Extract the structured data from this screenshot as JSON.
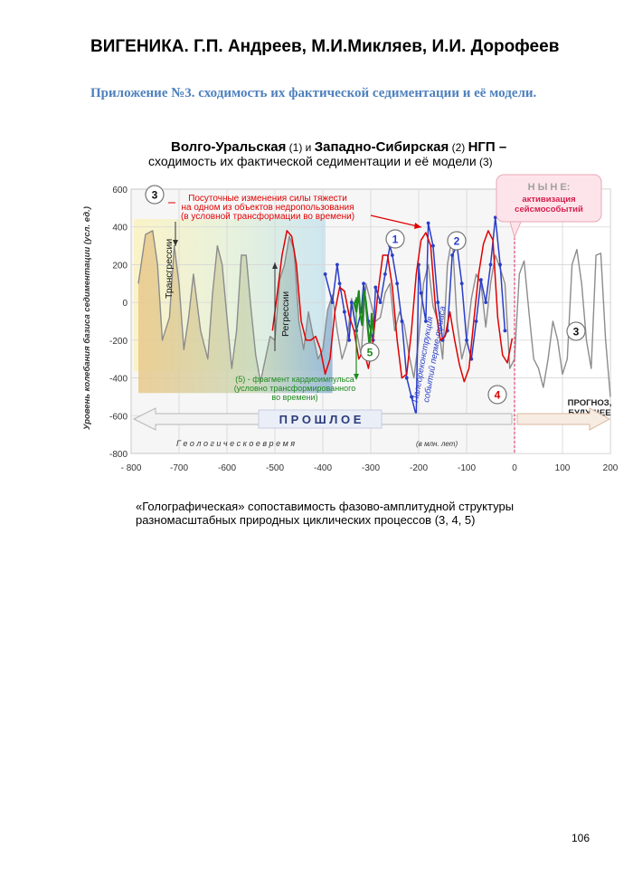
{
  "document": {
    "title": "ВИГЕНИКА. Г.П. Андреев, М.И.Микляев, И.И. Дорофеев",
    "appendix_title": "Приложение №3. сходимость их фактической седиментации и её модели.",
    "page_number": "106"
  },
  "figure": {
    "heading_part1": "Волго-Уральская",
    "heading_num1": " (1) и ",
    "heading_part2": "Западно-Сибирская",
    "heading_num2": " (2) ",
    "heading_part3": "НГП",
    "heading_dash": "  –",
    "heading_line2": "сходимость  их фактической  седиментации  и  её  модели",
    "heading_line2_num": " (3)",
    "gravity_note_l1": "Посуточные изменения силы тяжести",
    "gravity_note_l2": "на одном из объектов недропользования",
    "gravity_note_l3": "(в условной трансформации во времени)",
    "now_label": "Н Ы Н Е:",
    "now_sub1": "активизация",
    "now_sub2": "сейсмособытий",
    "transgression_label": "Трансгрессии",
    "regression_label": "Регрессии",
    "paleo_l1": "Палеореконструкция",
    "paleo_l2": "событий перме-триаса",
    "cardio_l1": "(5) - фрагмент кардиоимпульса",
    "cardio_l2": "(условно трансформированного",
    "cardio_l3": "во времени)",
    "forecast_l1": "ПРОГНОЗ,",
    "forecast_l2": "БУДУЩЕЕ",
    "past_label": "П Р О Ш Л О Е",
    "geotime_label": "Г е о л о г и ч е с к о е    в р е м я",
    "geotime_units": "(в млн. лет)",
    "markers": [
      "3",
      "1",
      "2",
      "3",
      "5",
      "4"
    ],
    "caption_l1": "«Голографическая» сопоставимость фазово-амплитудной структуры",
    "caption_l2": "разномасштабных природных циклических процессов (3, 4, 5)"
  },
  "chart_data": {
    "type": "line",
    "ylabel": "Уровень колебания базиса седиментации (усл. ед.)",
    "xlim": [
      -800,
      200
    ],
    "ylim": [
      -800,
      600
    ],
    "x_ticks": [
      "- 800",
      "-700",
      "-600",
      "-500",
      "-400",
      "-300",
      "-200",
      "-100",
      "0",
      "100",
      "200"
    ],
    "y_ticks": [
      "600",
      "400",
      "200",
      "0",
      "-200",
      "-400",
      "-600",
      "-800"
    ],
    "grid": true,
    "series": [
      {
        "name": "3",
        "color": "#8c8c8c",
        "x": [
          -785,
          -770,
          -755,
          -745,
          -735,
          -720,
          -710,
          -700,
          -690,
          -680,
          -670,
          -655,
          -640,
          -630,
          -620,
          -610,
          -600,
          -590,
          -580,
          -570,
          -560,
          -550,
          -540,
          -530,
          -520,
          -510,
          -500,
          -490,
          -480,
          -470,
          -460,
          -450,
          -440,
          -430,
          -420,
          -410,
          -400,
          -390,
          -380,
          -370,
          -360,
          -350,
          -340,
          -330,
          -320,
          -310,
          -300,
          -290,
          -280,
          -270,
          -260,
          -250,
          -240,
          -230,
          -220,
          -210,
          -200,
          -190,
          -180,
          -170,
          -160,
          -150,
          -140,
          -130,
          -120,
          -110,
          -100,
          -90,
          -80,
          -70,
          -60,
          -50,
          -40,
          -30,
          -20,
          -10,
          0,
          10,
          20,
          30,
          40,
          50,
          60,
          70,
          80,
          90,
          100,
          110,
          120,
          130,
          140,
          150,
          160,
          170,
          180,
          190,
          200
        ],
        "y": [
          100,
          360,
          380,
          200,
          -200,
          -80,
          300,
          100,
          -250,
          -80,
          150,
          -150,
          -300,
          50,
          300,
          200,
          -80,
          -350,
          -150,
          250,
          250,
          -30,
          -280,
          -420,
          -300,
          -180,
          -200,
          120,
          200,
          350,
          280,
          -100,
          -250,
          -50,
          -180,
          -300,
          -250,
          -40,
          40,
          -150,
          -300,
          -220,
          20,
          -150,
          -280,
          100,
          0,
          -100,
          -80,
          50,
          100,
          -150,
          -50,
          -120,
          -280,
          -400,
          -200,
          100,
          200,
          -20,
          -100,
          -300,
          200,
          350,
          -100,
          -300,
          -200,
          20,
          150,
          100,
          -130,
          100,
          250,
          180,
          100,
          -350,
          -300,
          150,
          220,
          -50,
          -300,
          -350,
          -450,
          -300,
          -100,
          -200,
          -380,
          -300,
          200,
          280,
          100,
          -200,
          -350,
          250,
          260,
          -200,
          -500
        ]
      },
      {
        "name": "1, 2",
        "color": "#2a3ec8",
        "x": [
          -395,
          -380,
          -370,
          -365,
          -355,
          -345,
          -340,
          -330,
          -320,
          -315,
          -305,
          -295,
          -290,
          -280,
          -270,
          -260,
          -255,
          -245,
          -235,
          -225,
          -215,
          -205,
          -200,
          -195,
          -185,
          -180,
          -170,
          -160,
          -150,
          -140,
          -130,
          -120,
          -110,
          -100,
          -90,
          -80,
          -70,
          -60,
          -50,
          -40,
          -30,
          -20
        ],
        "y": [
          150,
          0,
          200,
          100,
          -50,
          -200,
          0,
          -150,
          -50,
          100,
          -100,
          -200,
          80,
          0,
          150,
          300,
          250,
          100,
          -100,
          -400,
          -500,
          -600,
          200,
          50,
          -100,
          420,
          300,
          0,
          -200,
          -150,
          250,
          300,
          100,
          -200,
          -300,
          -100,
          120,
          0,
          200,
          450,
          200,
          -150
        ]
      },
      {
        "name": "4",
        "color": "#e00000",
        "x": [
          -505,
          -495,
          -485,
          -475,
          -465,
          -455,
          -445,
          -435,
          -425,
          -415,
          -405,
          -395,
          -385,
          -375,
          -365,
          -355,
          -345,
          -335,
          -325,
          -315,
          -305,
          -295,
          -285,
          -275,
          -265,
          -255,
          -245,
          -235,
          -225,
          -215,
          -205,
          -195,
          -185,
          -175,
          -165,
          -155,
          -145,
          -135,
          -125,
          -115,
          -105,
          -95,
          -85,
          -75,
          -65,
          -55,
          -45,
          -35,
          -25,
          -15,
          -5
        ],
        "y": [
          -150,
          50,
          250,
          380,
          350,
          200,
          -100,
          -200,
          -200,
          -180,
          -250,
          -380,
          -300,
          -50,
          80,
          60,
          -70,
          -150,
          -300,
          -250,
          -350,
          -200,
          50,
          250,
          250,
          80,
          -200,
          -400,
          -380,
          -150,
          150,
          330,
          370,
          300,
          -30,
          -200,
          -180,
          -50,
          -200,
          -330,
          -420,
          -350,
          -100,
          150,
          310,
          380,
          330,
          -80,
          -280,
          -320,
          -190
        ]
      },
      {
        "name": "5",
        "color": "#1e8a1e",
        "x": [
          -335,
          -330,
          -325,
          -322,
          -318,
          -314,
          -310,
          -306,
          -302,
          -298,
          -294
        ],
        "y": [
          0,
          -50,
          60,
          -60,
          -120,
          60,
          0,
          -140,
          -240,
          -60,
          -170
        ]
      }
    ]
  }
}
